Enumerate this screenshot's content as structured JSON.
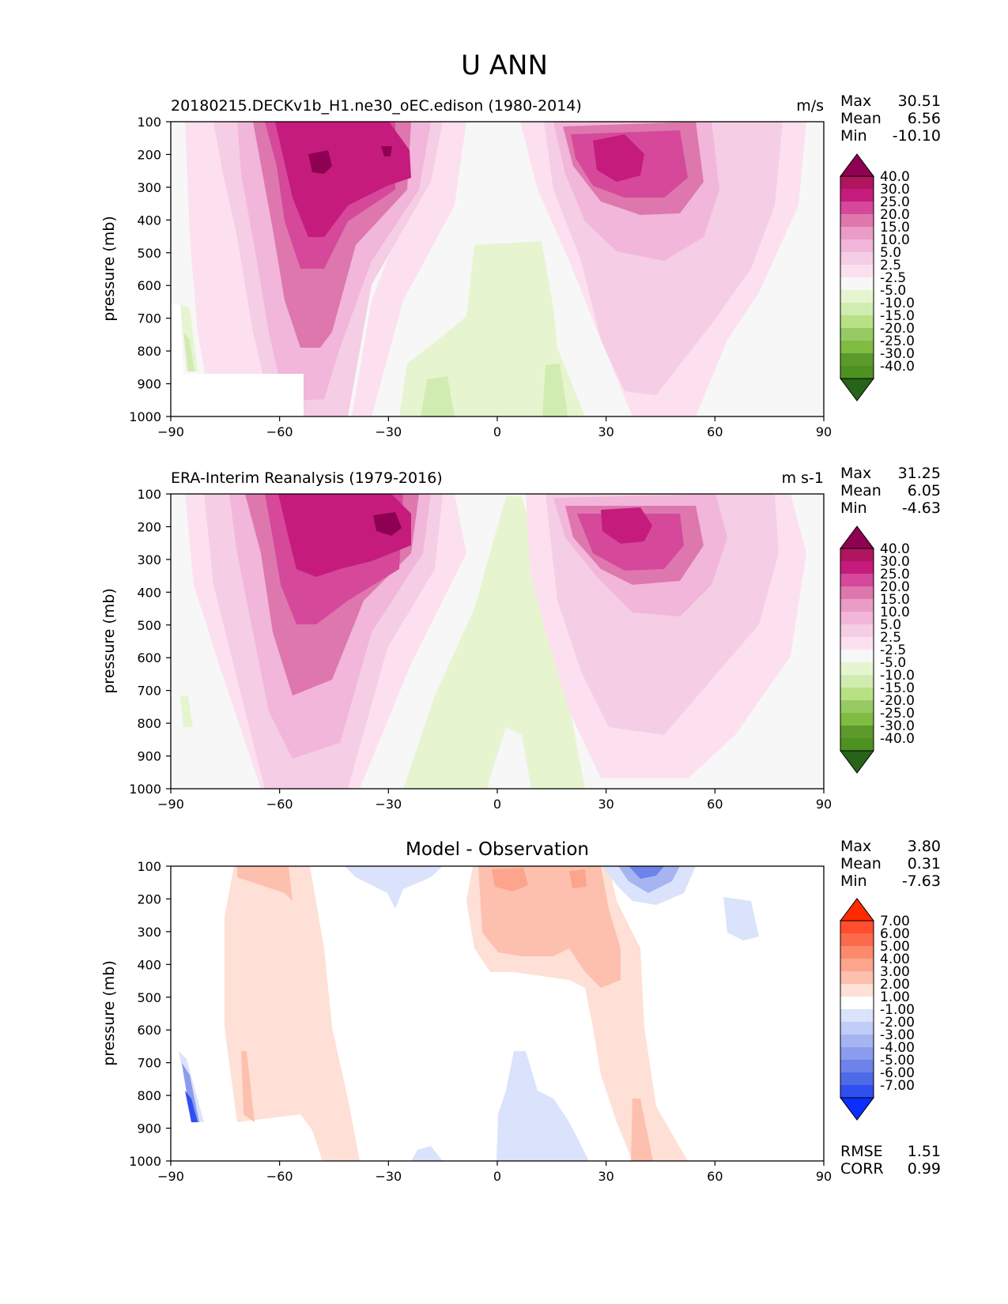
{
  "figure_title": "U ANN",
  "chart_data": [
    {
      "type": "contour",
      "panel": "test",
      "left_title": "20180215.DECKv1b_H1.ne30_oEC.edison (1980-2014)",
      "center_title": "",
      "units": "m/s",
      "xlabel": "",
      "ylabel": "pressure (mb)",
      "xlim": [
        -90,
        90
      ],
      "ylim": [
        1000,
        100
      ],
      "x_ticks": [
        "−90",
        "−60",
        "−30",
        "0",
        "30",
        "60",
        "90"
      ],
      "y_ticks": [
        "100",
        "200",
        "300",
        "400",
        "500",
        "600",
        "700",
        "800",
        "900",
        "1000"
      ],
      "stats": [
        {
          "label": "Max",
          "value": "30.51"
        },
        {
          "label": "Mean",
          "value": "6.56"
        },
        {
          "label": "Min",
          "value": "-10.10"
        }
      ],
      "colorbar": {
        "levels": [
          "40.0",
          "30.0",
          "25.0",
          "20.0",
          "15.0",
          "10.0",
          "5.0",
          "2.5",
          "-2.5",
          "-5.0",
          "-10.0",
          "-15.0",
          "-20.0",
          "-25.0",
          "-30.0",
          "-40.0"
        ],
        "colors": [
          "#8e0152",
          "#b0155e",
          "#c51b7d",
          "#d5489a",
          "#de77ae",
          "#e99dc6",
          "#f1b6da",
          "#f5cde5",
          "#fde0ef",
          "#f7f7f7",
          "#e6f5d0",
          "#d1ecb0",
          "#b8e186",
          "#98ca63",
          "#7fbc41",
          "#5b9a2b",
          "#4d9221",
          "#276419"
        ]
      }
    },
    {
      "type": "contour",
      "panel": "reference",
      "left_title": "ERA-Interim Reanalysis (1979-2016)",
      "center_title": "",
      "units": "m s-1",
      "xlabel": "",
      "ylabel": "pressure (mb)",
      "xlim": [
        -90,
        90
      ],
      "ylim": [
        1000,
        100
      ],
      "x_ticks": [
        "−90",
        "−60",
        "−30",
        "0",
        "30",
        "60",
        "90"
      ],
      "y_ticks": [
        "100",
        "200",
        "300",
        "400",
        "500",
        "600",
        "700",
        "800",
        "900",
        "1000"
      ],
      "stats": [
        {
          "label": "Max",
          "value": "31.25"
        },
        {
          "label": "Mean",
          "value": "6.05"
        },
        {
          "label": "Min",
          "value": "-4.63"
        }
      ],
      "colorbar": {
        "levels": [
          "40.0",
          "30.0",
          "25.0",
          "20.0",
          "15.0",
          "10.0",
          "5.0",
          "2.5",
          "-2.5",
          "-5.0",
          "-10.0",
          "-15.0",
          "-20.0",
          "-25.0",
          "-30.0",
          "-40.0"
        ],
        "colors": [
          "#8e0152",
          "#b0155e",
          "#c51b7d",
          "#d5489a",
          "#de77ae",
          "#e99dc6",
          "#f1b6da",
          "#f5cde5",
          "#fde0ef",
          "#f7f7f7",
          "#e6f5d0",
          "#d1ecb0",
          "#b8e186",
          "#98ca63",
          "#7fbc41",
          "#5b9a2b",
          "#4d9221",
          "#276419"
        ]
      }
    },
    {
      "type": "contour",
      "panel": "difference",
      "left_title": "",
      "center_title": "Model - Observation",
      "units": "",
      "xlabel": "",
      "ylabel": "pressure (mb)",
      "xlim": [
        -90,
        90
      ],
      "ylim": [
        1000,
        100
      ],
      "x_ticks": [
        "−90",
        "−60",
        "−30",
        "0",
        "30",
        "60",
        "90"
      ],
      "y_ticks": [
        "100",
        "200",
        "300",
        "400",
        "500",
        "600",
        "700",
        "800",
        "900",
        "1000"
      ],
      "stats": [
        {
          "label": "Max",
          "value": "3.80"
        },
        {
          "label": "Mean",
          "value": "0.31"
        },
        {
          "label": "Min",
          "value": "-7.63"
        }
      ],
      "extra_stats": [
        {
          "label": "RMSE",
          "value": "1.51"
        },
        {
          "label": "CORR",
          "value": "0.99"
        }
      ],
      "colorbar": {
        "levels": [
          "7.00",
          "6.00",
          "5.00",
          "4.00",
          "3.00",
          "2.00",
          "1.00",
          "-1.00",
          "-2.00",
          "-3.00",
          "-4.00",
          "-5.00",
          "-6.00",
          "-7.00"
        ],
        "colors": [
          "#ff2a00",
          "#ff4d2e",
          "#fb6a4a",
          "#fc8a6a",
          "#fca48c",
          "#fdc0ae",
          "#fee0d6",
          "#ffffff",
          "#dbe2fb",
          "#c1ccf7",
          "#a6b5f2",
          "#8b9cee",
          "#6d83ea",
          "#4e6ae6",
          "#2f4ff0",
          "#0a2fff"
        ]
      }
    }
  ]
}
